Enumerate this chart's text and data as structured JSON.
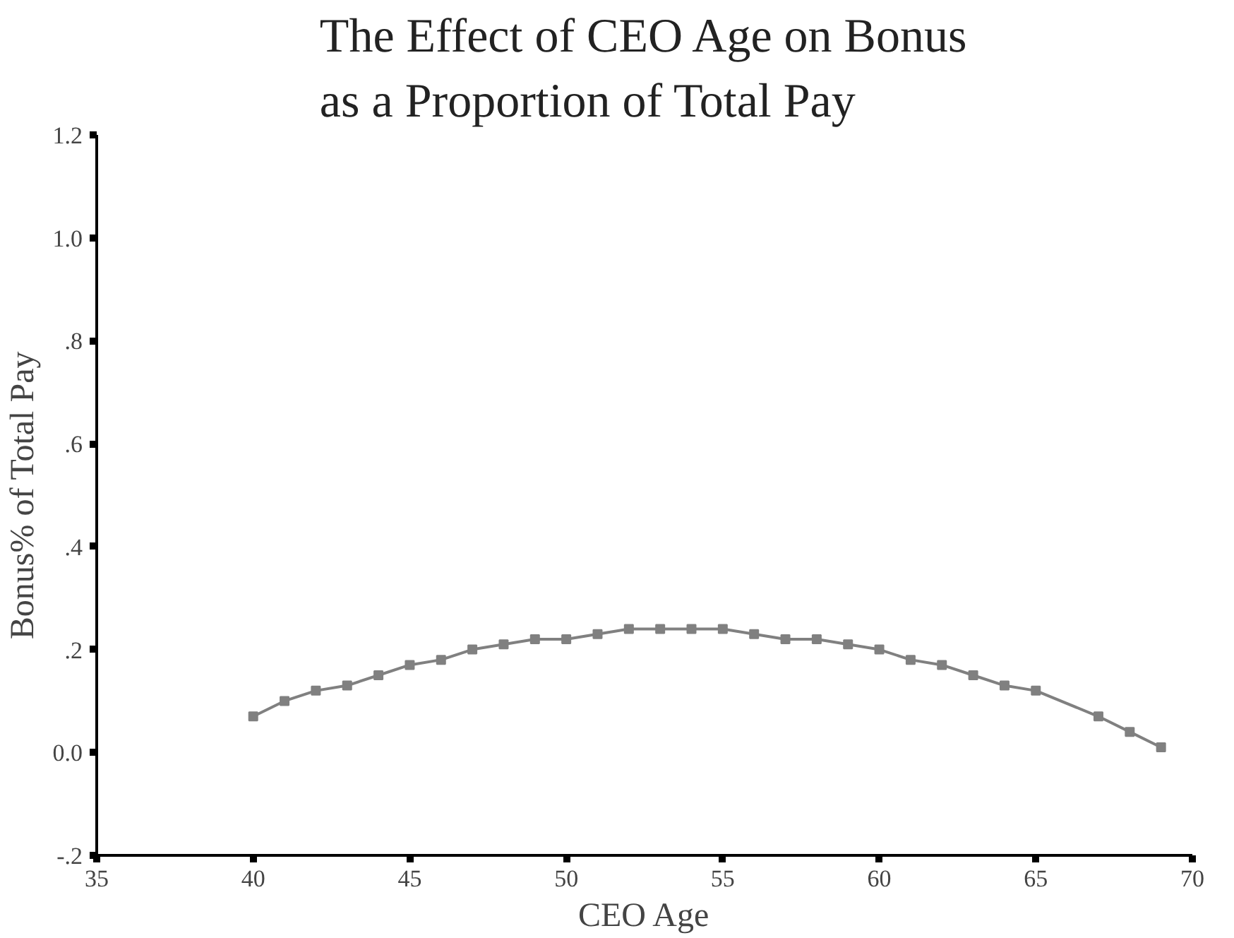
{
  "chart_data": {
    "type": "line",
    "title": "The Effect of CEO Age on Bonus\nas a Proportion of Total Pay",
    "xlabel": "CEO Age",
    "ylabel": "Bonus% of Total Pay",
    "x": [
      40,
      41,
      42,
      43,
      44,
      45,
      46,
      47,
      48,
      49,
      50,
      51,
      52,
      53,
      54,
      55,
      56,
      57,
      58,
      59,
      60,
      61,
      62,
      63,
      64,
      65,
      67,
      68,
      69
    ],
    "series": [
      {
        "color": "#808080",
        "values": [
          0.07,
          0.1,
          0.12,
          0.13,
          0.15,
          0.17,
          0.18,
          0.2,
          0.21,
          0.22,
          0.22,
          0.23,
          0.24,
          0.24,
          0.24,
          0.24,
          0.23,
          0.22,
          0.22,
          0.21,
          0.2,
          0.18,
          0.17,
          0.15,
          0.13,
          0.12,
          0.07,
          0.04,
          0.01
        ]
      }
    ],
    "xlim": [
      35,
      70
    ],
    "xticks": [
      35,
      40,
      45,
      50,
      55,
      60,
      65,
      70
    ],
    "ylim": [
      -0.2,
      1.2
    ],
    "yticks": [
      {
        "value": -0.2,
        "label": "-.2"
      },
      {
        "value": 0,
        "label": "0.0"
      },
      {
        "value": 0.2,
        "label": ".2"
      },
      {
        "value": 0.4,
        "label": ".4"
      },
      {
        "value": 0.6,
        "label": ".6"
      },
      {
        "value": 0.8,
        "label": ".8"
      },
      {
        "value": 1.0,
        "label": "1.0"
      },
      {
        "value": 1.2,
        "label": "1.2"
      }
    ],
    "marker": "square",
    "line_style": "solid"
  }
}
